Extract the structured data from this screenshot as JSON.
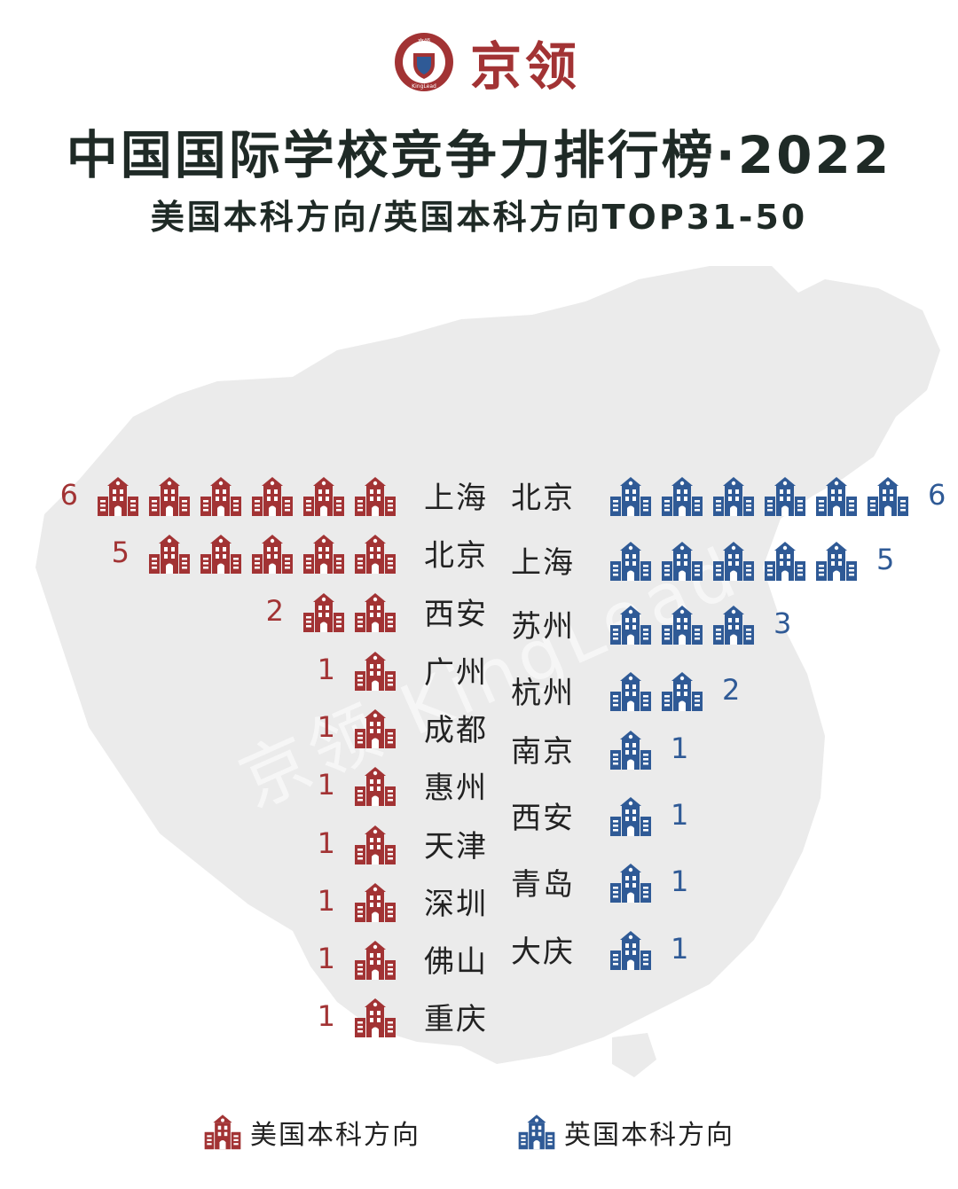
{
  "brand": {
    "name": "京领",
    "emblem_top": "京领",
    "emblem_bottom": "KingLead"
  },
  "watermark": "京领 KingLead",
  "colors": {
    "us": "#a23334",
    "uk": "#2f5a96",
    "map": "#ebebeb",
    "title": "#1f2a26"
  },
  "chart_data": {
    "type": "pictogram",
    "title": "中国国际学校竞争力排行榜·2022",
    "subtitle": "美国本科方向/英国本科方向TOP31-50",
    "icon": "school-building-icon",
    "series": [
      {
        "name": "美国本科方向",
        "color": "#a23334",
        "categories": [
          "上海",
          "北京",
          "西安",
          "广州",
          "成都",
          "惠州",
          "天津",
          "深圳",
          "佛山",
          "重庆"
        ],
        "values": [
          6,
          5,
          2,
          1,
          1,
          1,
          1,
          1,
          1,
          1
        ]
      },
      {
        "name": "英国本科方向",
        "color": "#2f5a96",
        "categories": [
          "北京",
          "上海",
          "苏州",
          "杭州",
          "南京",
          "西安",
          "青岛",
          "大庆"
        ],
        "values": [
          6,
          5,
          3,
          2,
          1,
          1,
          1,
          1
        ]
      }
    ],
    "legend": "bottom"
  }
}
